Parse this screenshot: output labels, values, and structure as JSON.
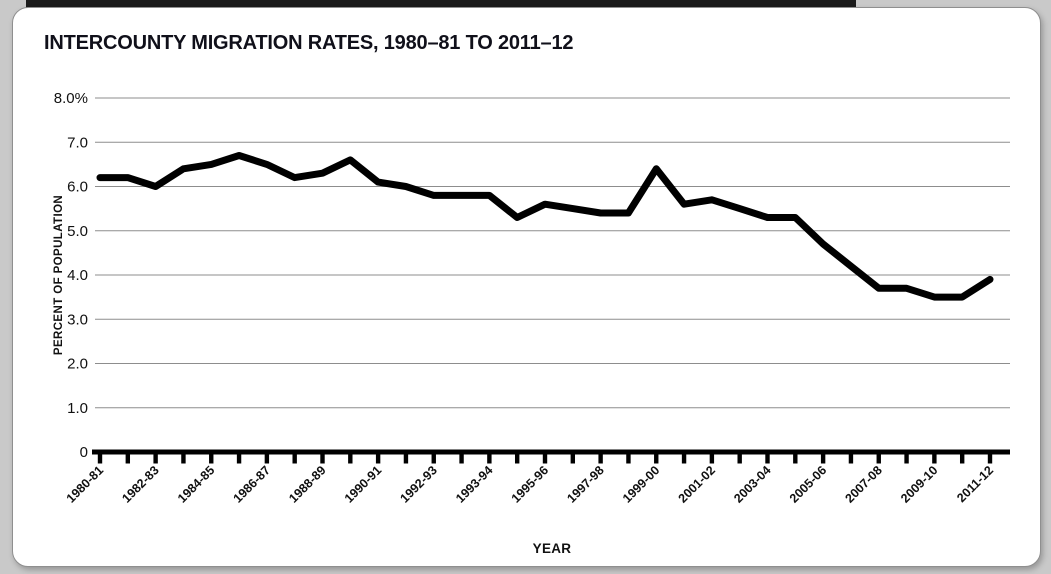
{
  "page": {
    "background_color": "#c9c9c9",
    "card_background": "#ffffff",
    "top_strip_color": "#1b1b1b"
  },
  "chart_data": {
    "type": "line",
    "title": "INTERCOUNTY MIGRATION RATES, 1980–81 TO 2011–12",
    "xlabel": "YEAR",
    "ylabel": "PERCENT OF POPULATION",
    "ylim": [
      0,
      8
    ],
    "grid": "horizontal-only",
    "legend": "none",
    "line_color": "#000000",
    "line_width": 7,
    "y_ticks": [
      {
        "label": "8.0%",
        "value": 8
      },
      {
        "label": "7.0",
        "value": 7
      },
      {
        "label": "6.0",
        "value": 6
      },
      {
        "label": "5.0",
        "value": 5
      },
      {
        "label": "4.0",
        "value": 4
      },
      {
        "label": "3.0",
        "value": 3
      },
      {
        "label": "2.0",
        "value": 2
      },
      {
        "label": "1.0",
        "value": 1
      },
      {
        "label": "0",
        "value": 0
      }
    ],
    "x_tick_count": 33,
    "x_labeled_every": 2,
    "x_tick_labels": [
      "1980-81",
      "1982-83",
      "1984-85",
      "1986-87",
      "1988-89",
      "1990-91",
      "1992-93",
      "1993-94",
      "1995-96",
      "1997-98",
      "1999-00",
      "2001-02",
      "2003-04",
      "2005-06",
      "2007-08",
      "2009-10",
      "2011-12"
    ],
    "values": [
      6.2,
      6.2,
      6.0,
      6.4,
      6.5,
      6.7,
      6.5,
      6.2,
      6.3,
      6.6,
      6.1,
      6.0,
      5.8,
      5.8,
      5.8,
      5.3,
      5.6,
      5.5,
      5.4,
      5.4,
      6.4,
      5.6,
      5.7,
      5.5,
      5.3,
      5.3,
      4.7,
      4.2,
      3.7,
      3.7,
      3.5,
      3.5,
      3.9
    ]
  }
}
